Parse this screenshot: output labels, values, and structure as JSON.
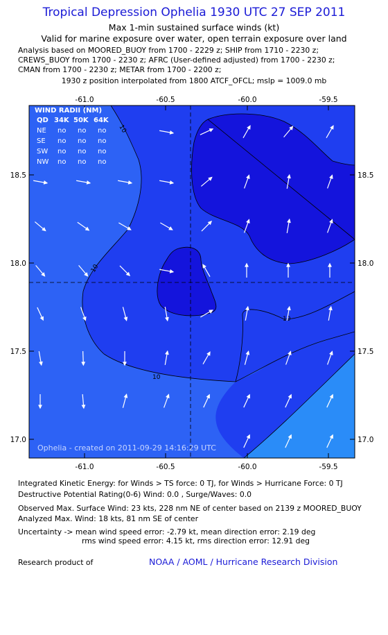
{
  "header": {
    "title": "Tropical Depression Ophelia 1930 UTC 27 SEP 2011",
    "subtitle_1": "Max 1-min sustained surface winds (kt)",
    "subtitle_2": "Valid for marine exposure over water, open terrain exposure over land",
    "analysis_lines": [
      "Analysis based on MOORED_BUOY from 1700 - 2229 z; SHIP from 1710 - 2230 z;",
      "CREWS_BUOY from 1700 - 2230 z; AFRC (User-defined adjusted) from 1700 - 2230 z;",
      "CMAN from 1700 - 2230 z; METAR from 1700 - 2200 z;"
    ],
    "position_line": "1930 z position interpolated from 1800 ATCF_OFCL; mslp = 1009.0 mb"
  },
  "map": {
    "x_ticks": [
      "-61.0",
      "-60.5",
      "-60.0",
      "-59.5"
    ],
    "y_ticks": [
      "18.5",
      "18.0",
      "17.5",
      "17.0"
    ],
    "contour_labels": [
      "10",
      "10",
      "10",
      "10"
    ],
    "credit": "Ophelia - created on 2011-09-29 14:16:29 UTC",
    "colors": {
      "level_0_5": "#2d62f5",
      "level_5_10": "#1f3ef0",
      "level_10_15": "#1414dc",
      "level_15_20": "#0b00b8",
      "level_20_plus": "#2a8cf8"
    }
  },
  "wind_radii": {
    "title": "WIND RADII (NM)",
    "header": [
      "QD",
      "34K",
      "50K",
      "64K"
    ],
    "rows": [
      {
        "qd": "NE",
        "k34": "no",
        "k50": "no",
        "k64": "no"
      },
      {
        "qd": "SE",
        "k34": "no",
        "k50": "no",
        "k64": "no"
      },
      {
        "qd": "SW",
        "k34": "no",
        "k50": "no",
        "k64": "no"
      },
      {
        "qd": "NW",
        "k34": "no",
        "k50": "no",
        "k64": "no"
      }
    ]
  },
  "footer": {
    "ike": "Integrated Kinetic Energy:  for Winds > TS force: 0 TJ,  for Winds > Hurricane Force: 0 TJ",
    "dpr": "Destructive Potential Rating(0-6)   Wind: 0.0 , Surge/Waves: 0.0",
    "obs_max": "Observed Max. Surface Wind: 23 kts, 228 nm NE of center based on 2139 z MOORED_BUOY",
    "analyzed_max": "Analyzed Max. Wind: 18 kts, 81 nm SE of center",
    "uncertainty_1": "Uncertainty -> mean wind speed error:  -2.79 kt,   mean direction error: 2.19 deg",
    "uncertainty_2": "rms wind speed error: 4.15 kt,   rms direction error: 12.91 deg",
    "research": "Research product of",
    "org": "NOAA / AOML / Hurricane Research Division"
  }
}
